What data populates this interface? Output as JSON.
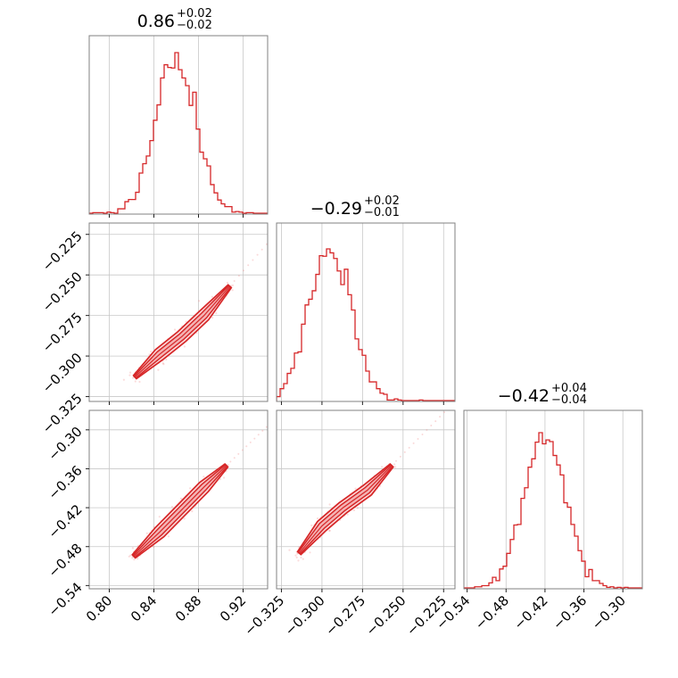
{
  "colors": {
    "line": "#d62728",
    "fill_inner": "#f4b3b4",
    "fill_outer": "#fbd9da",
    "scatter": "#f08080"
  },
  "chart_data": {
    "type": "corner",
    "grid": true,
    "parameters": [
      {
        "id": "p0",
        "title_value": "0.86",
        "title_plus": "+0.02",
        "title_minus": "−0.02",
        "range": [
          0.782,
          0.942
        ],
        "ticks": [
          0.8,
          0.84,
          0.88,
          0.92
        ],
        "tick_labels": [
          "0.80",
          "0.84",
          "0.88",
          "0.92"
        ],
        "mean": 0.86,
        "sd": 0.018,
        "hist_peak": 0.9
      },
      {
        "id": "p1",
        "title_value": "−0.29",
        "title_plus": "+0.02",
        "title_minus": "−0.01",
        "range": [
          -0.328,
          -0.218
        ],
        "ticks": [
          -0.325,
          -0.3,
          -0.275,
          -0.25,
          -0.225
        ],
        "tick_labels": [
          "−0.325",
          "−0.300",
          "−0.275",
          "−0.250",
          "−0.225"
        ],
        "mean": -0.295,
        "sd": 0.013,
        "hist_peak": 0.85
      },
      {
        "id": "p2",
        "title_value": "−0.42",
        "title_plus": "+0.04",
        "title_minus": "−0.04",
        "range": [
          -0.545,
          -0.27
        ],
        "ticks": [
          -0.54,
          -0.48,
          -0.42,
          -0.36,
          -0.3
        ],
        "tick_labels": [
          "−0.54",
          "−0.48",
          "−0.42",
          "−0.36",
          "−0.30"
        ],
        "mean": -0.42,
        "sd": 0.032,
        "hist_peak": 0.87
      }
    ],
    "pairs": [
      {
        "row": 1,
        "col": 0,
        "points": [
          [
            0.823,
            -0.313
          ],
          [
            0.845,
            -0.299
          ],
          [
            0.865,
            -0.288
          ],
          [
            0.885,
            -0.275
          ],
          [
            0.908,
            -0.257
          ]
        ],
        "width": 0.0035
      },
      {
        "row": 2,
        "col": 0,
        "points": [
          [
            0.822,
            -0.495
          ],
          [
            0.845,
            -0.458
          ],
          [
            0.865,
            -0.423
          ],
          [
            0.885,
            -0.388
          ],
          [
            0.905,
            -0.355
          ]
        ],
        "width": 0.0055
      },
      {
        "row": 2,
        "col": 1,
        "points": [
          [
            -0.314,
            -0.49
          ],
          [
            -0.3,
            -0.448
          ],
          [
            -0.287,
            -0.42
          ],
          [
            -0.272,
            -0.393
          ],
          [
            -0.257,
            -0.355
          ]
        ],
        "width": 0.0009
      }
    ]
  }
}
